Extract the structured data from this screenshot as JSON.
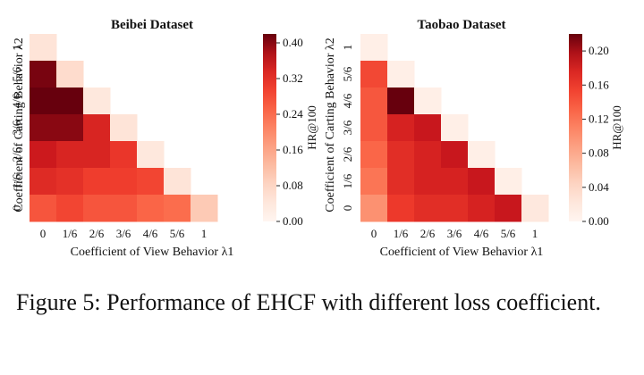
{
  "chart_data": [
    {
      "type": "heatmap",
      "title": "Beibei Dataset",
      "xlabel": "Coefficient of View Behavior λ1",
      "ylabel": "Coefficient of Carting Behavior λ2",
      "x_ticks": [
        "0",
        "1/6",
        "2/6",
        "3/6",
        "4/6",
        "5/6",
        "1"
      ],
      "y_ticks": [
        "1",
        "5/6",
        "4/6",
        "3/6",
        "2/6",
        "1/6",
        "0"
      ],
      "colorbar_label": "HR@100",
      "colorbar_ticks": [
        "0.40",
        "0.32",
        "0.24",
        "0.16",
        "0.08",
        "0.00"
      ],
      "vmin": 0.0,
      "vmax": 0.42,
      "values": [
        [
          0.05,
          null,
          null,
          null,
          null,
          null,
          null
        ],
        [
          0.41,
          0.07,
          null,
          null,
          null,
          null,
          null
        ],
        [
          0.42,
          0.43,
          0.04,
          null,
          null,
          null,
          null
        ],
        [
          0.4,
          0.4,
          0.34,
          0.05,
          null,
          null,
          null
        ],
        [
          0.36,
          0.34,
          0.34,
          0.31,
          0.04,
          null,
          null
        ],
        [
          0.33,
          0.32,
          0.3,
          0.3,
          0.29,
          0.05,
          null
        ],
        [
          0.27,
          0.29,
          0.27,
          0.27,
          0.25,
          0.24,
          0.1
        ]
      ]
    },
    {
      "type": "heatmap",
      "title": "Taobao Dataset",
      "xlabel": "Coefficient of View Behavior λ1",
      "ylabel": "Coefficient of Carting Behavior λ2",
      "x_ticks": [
        "0",
        "1/6",
        "2/6",
        "3/6",
        "4/6",
        "5/6",
        "1"
      ],
      "y_ticks": [
        "1",
        "5/6",
        "4/6",
        "3/6",
        "2/6",
        "1/6",
        "0"
      ],
      "colorbar_label": "HR@100",
      "colorbar_ticks": [
        "0.20",
        "0.16",
        "0.12",
        "0.08",
        "0.04",
        "0.00"
      ],
      "vmin": 0.0,
      "vmax": 0.22,
      "values": [
        [
          0.01,
          null,
          null,
          null,
          null,
          null,
          null
        ],
        [
          0.15,
          0.01,
          null,
          null,
          null,
          null,
          null
        ],
        [
          0.14,
          0.22,
          0.01,
          null,
          null,
          null,
          null
        ],
        [
          0.14,
          0.18,
          0.19,
          0.01,
          null,
          null,
          null
        ],
        [
          0.13,
          0.17,
          0.18,
          0.19,
          0.01,
          null,
          null
        ],
        [
          0.12,
          0.17,
          0.18,
          0.18,
          0.19,
          0.01,
          null
        ],
        [
          0.1,
          0.16,
          0.17,
          0.17,
          0.18,
          0.19,
          0.02
        ]
      ]
    }
  ],
  "caption": "Figure 5: Performance of EHCF with different loss coefficient."
}
